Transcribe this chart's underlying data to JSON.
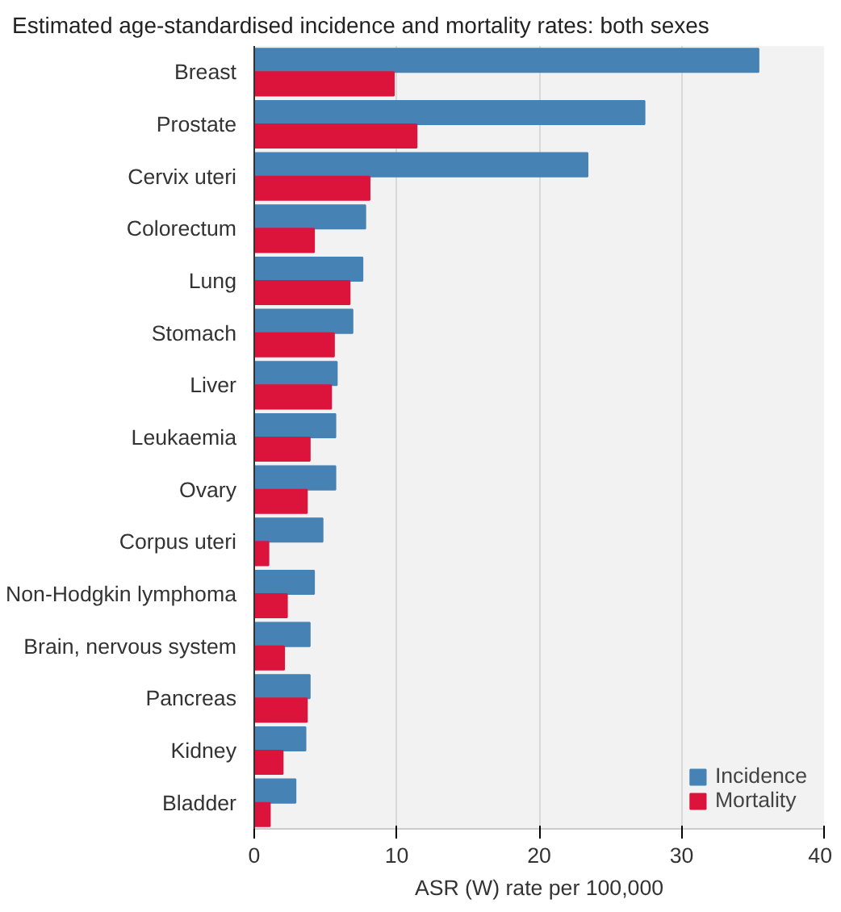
{
  "chart_data": {
    "type": "bar",
    "orientation": "horizontal",
    "title": "Estimated age-standardised incidence and mortality rates: both sexes",
    "xlabel": "ASR (W) rate per 100,000",
    "categories": [
      "Breast",
      "Prostate",
      "Cervix uteri",
      "Colorectum",
      "Lung",
      "Stomach",
      "Liver",
      "Leukaemia",
      "Ovary",
      "Corpus uteri",
      "Non-Hodgkin lymphoma",
      "Brain, nervous system",
      "Pancreas",
      "Kidney",
      "Bladder"
    ],
    "series": [
      {
        "name": "Incidence",
        "color": "#4682b4",
        "values": [
          35.4,
          27.4,
          23.4,
          7.8,
          7.6,
          6.9,
          5.8,
          5.7,
          5.7,
          4.8,
          4.2,
          3.9,
          3.9,
          3.6,
          2.9
        ]
      },
      {
        "name": "Mortality",
        "color": "#dc143c",
        "values": [
          9.8,
          11.4,
          8.1,
          4.2,
          6.7,
          5.6,
          5.4,
          3.9,
          3.7,
          1.0,
          2.3,
          2.1,
          3.7,
          2.0,
          1.1
        ]
      }
    ],
    "xlim": [
      0,
      40
    ],
    "xticks": [
      0,
      10,
      20,
      30,
      40
    ],
    "grid": "x",
    "legend": "bottom right"
  }
}
